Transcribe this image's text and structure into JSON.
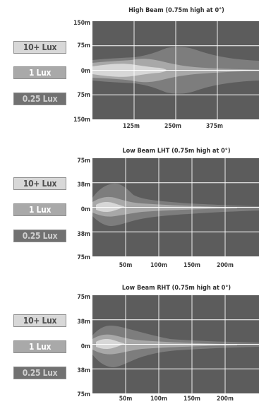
{
  "legend": [
    "10+ Lux",
    "1 Lux",
    "0.25 Lux"
  ],
  "colors": {
    "background": "#5c5c5c",
    "zone_0_25_lux": "#7d7d7d",
    "zone_1_lux": "#a8a8a8",
    "zone_10_lux": "#d7d7d7",
    "grid": "#ffffff"
  },
  "diagrams": [
    {
      "title": "High Beam (0.75m high at 0°)",
      "y_labels": [
        "150m",
        "75m",
        "0m",
        "75m",
        "150m"
      ],
      "x_labels": [
        "125m",
        "250m",
        "375m"
      ]
    },
    {
      "title": "Low Beam LHT (0.75m high at 0°)",
      "y_labels": [
        "75m",
        "38m",
        "0m",
        "38m",
        "75m"
      ],
      "x_labels": [
        "50m",
        "100m",
        "150m",
        "200m"
      ]
    },
    {
      "title": "Low Beam RHT (0.75m high at 0°)",
      "y_labels": [
        "75m",
        "38m",
        "0m",
        "38m",
        "75m"
      ],
      "x_labels": [
        "50m",
        "100m",
        "150m",
        "200m"
      ]
    }
  ]
}
